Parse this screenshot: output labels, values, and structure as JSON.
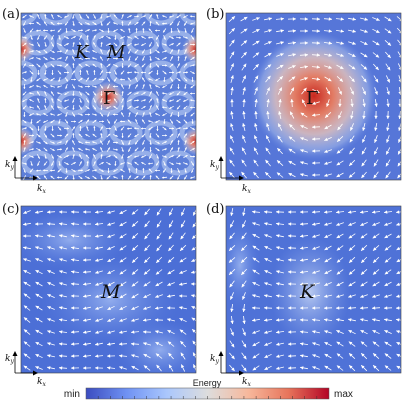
{
  "panels": [
    {
      "id": "a",
      "tag": "(a)",
      "kind": "lattice",
      "points": [
        {
          "sym": "K",
          "italic": true,
          "center": false
        },
        {
          "sym": "M",
          "italic": true,
          "center": false
        },
        {
          "sym": "Γ",
          "italic": false,
          "center": true
        }
      ],
      "axes": {
        "x": "k",
        "x_sub": "x",
        "y": "k",
        "y_sub": "y"
      }
    },
    {
      "id": "b",
      "tag": "(b)",
      "kind": "gamma",
      "points": [
        {
          "sym": "Γ",
          "italic": false,
          "center": true
        }
      ],
      "axes": {
        "x": "k",
        "x_sub": "x",
        "y": "k",
        "y_sub": "y"
      }
    },
    {
      "id": "c",
      "tag": "(c)",
      "kind": "flat-m",
      "points": [
        {
          "sym": "M",
          "italic": true,
          "center": true
        }
      ],
      "axes": {
        "x": "k",
        "x_sub": "x",
        "y": "k",
        "y_sub": "y"
      }
    },
    {
      "id": "d",
      "tag": "(d)",
      "kind": "flat-k",
      "points": [
        {
          "sym": "K",
          "italic": true,
          "center": true
        }
      ],
      "axes": {
        "x": "k",
        "x_sub": "x",
        "y": "k",
        "y_sub": "y"
      }
    }
  ],
  "colorbar": {
    "title": "Energy",
    "min_label": "min",
    "max_label": "max",
    "colormap": [
      "#3b4cc0",
      "#6f92f3",
      "#aac7fd",
      "#dddddd",
      "#f7b89c",
      "#e7745b",
      "#b40426"
    ]
  }
}
